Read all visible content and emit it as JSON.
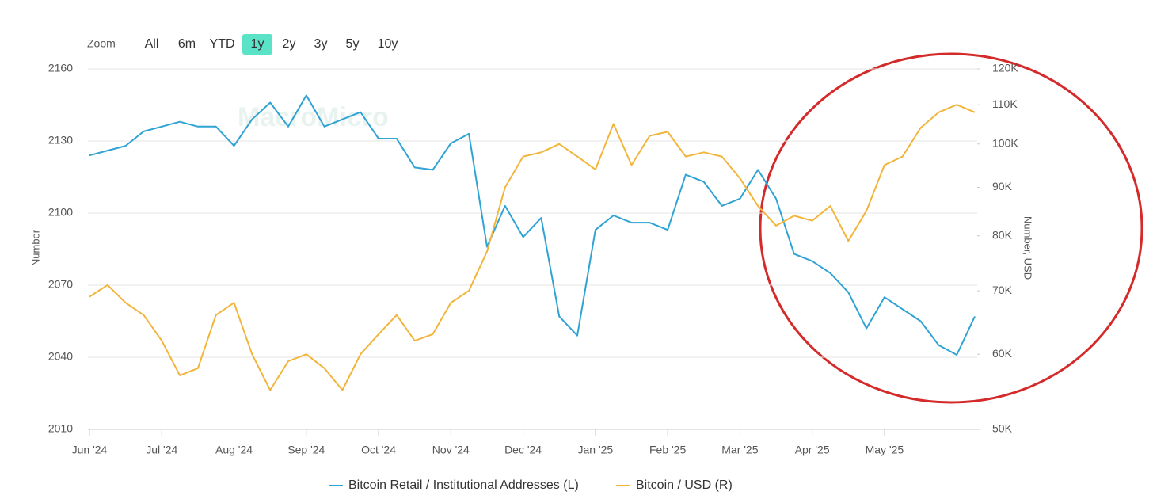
{
  "chart_data": {
    "type": "line",
    "watermark": "MacroMicro",
    "range_selector": {
      "label": "Zoom",
      "options": [
        "All",
        "6m",
        "YTD",
        "1y",
        "2y",
        "3y",
        "5y",
        "10y"
      ],
      "selected": "1y"
    },
    "ylabel": "Number",
    "y2label": "Number, USD",
    "categories": [
      "Jun '24",
      null,
      null,
      null,
      "Jul '24",
      null,
      null,
      null,
      "Aug '24",
      null,
      null,
      null,
      "Sep '24",
      null,
      null,
      null,
      "Oct '24",
      null,
      null,
      null,
      "Nov '24",
      null,
      null,
      null,
      "Dec '24",
      null,
      null,
      null,
      "Jan '25",
      null,
      null,
      null,
      "Feb '25",
      null,
      null,
      null,
      "Mar '25",
      null,
      null,
      null,
      "Apr '25",
      null,
      null,
      null,
      "May '25",
      null,
      null,
      null,
      null,
      null
    ],
    "ylim": [
      2010,
      2160
    ],
    "yticks": [
      2010,
      2040,
      2070,
      2100,
      2130,
      2160
    ],
    "y2lim": [
      50000,
      120000
    ],
    "y2log": true,
    "y2ticks": [
      {
        "value": 50000,
        "label": "50K"
      },
      {
        "value": 60000,
        "label": "60K"
      },
      {
        "value": 70000,
        "label": "70K"
      },
      {
        "value": 80000,
        "label": "80K"
      },
      {
        "value": 90000,
        "label": "90K"
      },
      {
        "value": 100000,
        "label": "100K"
      },
      {
        "value": 110000,
        "label": "110K"
      },
      {
        "value": 120000,
        "label": "120K"
      }
    ],
    "grid": true,
    "series": [
      {
        "name": "Bitcoin Retail / Institutional Addresses (L)",
        "color": "#2fa3d4",
        "values": [
          2124,
          2126,
          2128,
          2134,
          2136,
          2138,
          2136,
          2136,
          2128,
          2139,
          2146,
          2136,
          2149,
          2136,
          2139,
          2142,
          2131,
          2131,
          2119,
          2118,
          2129,
          2133,
          2086,
          2103,
          2090,
          2098,
          2057,
          2049,
          2093,
          2099,
          2096,
          2096,
          2093,
          2116,
          2113,
          2103,
          2106,
          2118,
          2106,
          2083,
          2080,
          2075,
          2067,
          2052,
          2065,
          2060,
          2055,
          2045,
          2041,
          2057
        ]
      },
      {
        "name": "Bitcoin / USD (R)",
        "color": "#f2b53c",
        "axis": "y2",
        "values": [
          69000,
          71000,
          68000,
          66000,
          62000,
          57000,
          58000,
          66000,
          68000,
          60000,
          55000,
          59000,
          60000,
          58000,
          55000,
          60000,
          63000,
          66000,
          62000,
          63000,
          68000,
          70000,
          77000,
          90000,
          97000,
          98000,
          100000,
          97000,
          94000,
          105000,
          95000,
          102000,
          103000,
          97000,
          98000,
          97000,
          92000,
          86000,
          82000,
          84000,
          83000,
          86000,
          79000,
          85000,
          95000,
          97000,
          104000,
          108000,
          110000,
          108000
        ]
      }
    ]
  }
}
